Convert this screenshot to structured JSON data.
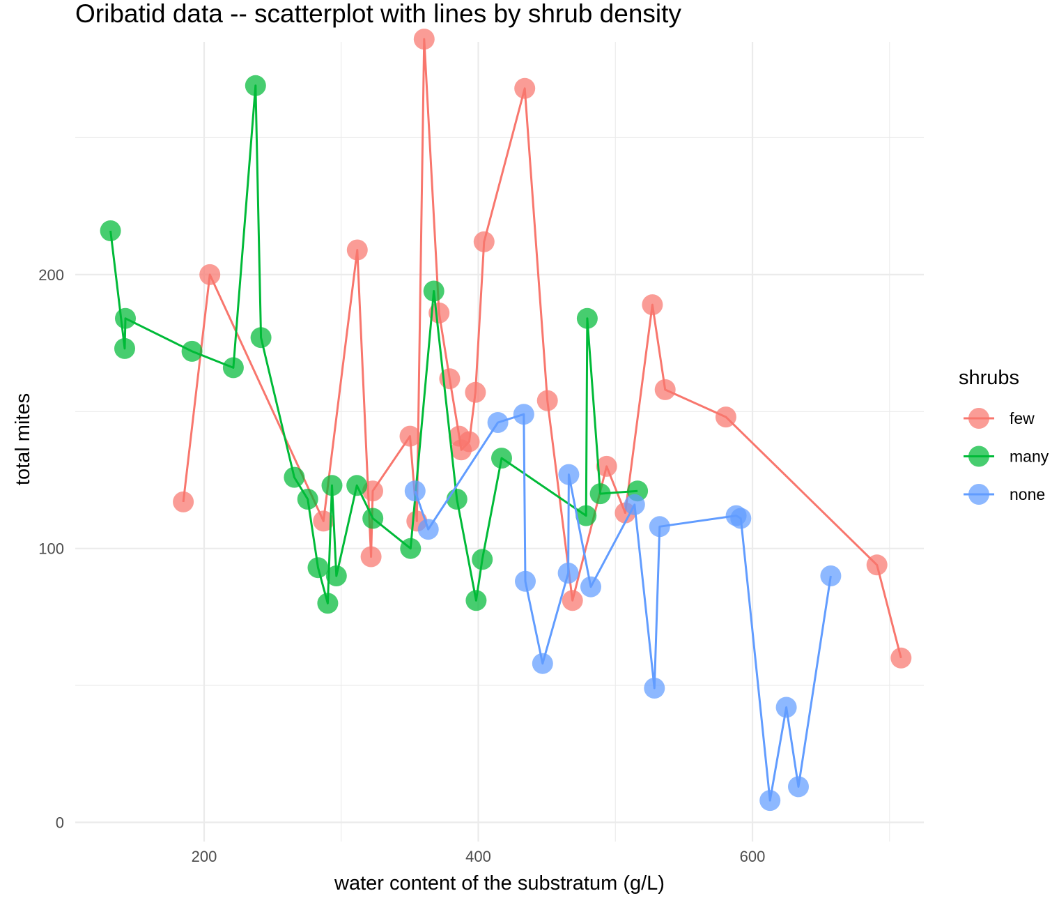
{
  "chart_data": {
    "type": "scatter",
    "title": "Oribatid data -- scatterplot with lines by shrub density",
    "xlabel": "water content of the substratum (g/L)",
    "ylabel": "total mites",
    "xlim": [
      106,
      725
    ],
    "ylim": [
      -7,
      285
    ],
    "x_ticks": [
      200,
      400,
      600
    ],
    "y_ticks": [
      0,
      100,
      200
    ],
    "x_minor_ticks": [
      300,
      500,
      700
    ],
    "y_minor_ticks": [
      50,
      150,
      250
    ],
    "grid": true,
    "legend": {
      "title": "shrubs",
      "position": "right"
    },
    "series": [
      {
        "name": "few",
        "color": "#F8766D",
        "points": [
          [
            184.8,
            117
          ],
          [
            204.2,
            200
          ],
          [
            287.1,
            110
          ],
          [
            311.7,
            209
          ],
          [
            321.8,
            97
          ],
          [
            323.0,
            121
          ],
          [
            350.2,
            141
          ],
          [
            355.2,
            110
          ],
          [
            360.5,
            286
          ],
          [
            371.4,
            186
          ],
          [
            379.1,
            162
          ],
          [
            386.1,
            141
          ],
          [
            387.6,
            136
          ],
          [
            393.4,
            139
          ],
          [
            397.9,
            157
          ],
          [
            404.2,
            212
          ],
          [
            433.9,
            268
          ],
          [
            450.4,
            154
          ],
          [
            468.7,
            81
          ],
          [
            493.6,
            130
          ],
          [
            507.2,
            113
          ],
          [
            527.0,
            189
          ],
          [
            536.3,
            158
          ],
          [
            580.6,
            148
          ],
          [
            690.8,
            94
          ],
          [
            708.4,
            60
          ]
        ]
      },
      {
        "name": "many",
        "color": "#00BA38",
        "points": [
          [
            131.7,
            216
          ],
          [
            142.1,
            173
          ],
          [
            142.6,
            184
          ],
          [
            191.2,
            172
          ],
          [
            221.3,
            166
          ],
          [
            237.5,
            269
          ],
          [
            241.5,
            177
          ],
          [
            265.8,
            126
          ],
          [
            275.6,
            118
          ],
          [
            283.1,
            93
          ],
          [
            290.2,
            80
          ],
          [
            293.3,
            123
          ],
          [
            296.5,
            90
          ],
          [
            311.4,
            123
          ],
          [
            323.1,
            111
          ],
          [
            350.6,
            100
          ],
          [
            367.6,
            194
          ],
          [
            384.4,
            118
          ],
          [
            398.4,
            81
          ],
          [
            402.9,
            96
          ],
          [
            417.0,
            133
          ],
          [
            478.6,
            112
          ],
          [
            479.5,
            184
          ],
          [
            489.0,
            120
          ],
          [
            516.2,
            121
          ]
        ]
      },
      {
        "name": "none",
        "color": "#619CFF",
        "points": [
          [
            353.9,
            121
          ],
          [
            363.5,
            107
          ],
          [
            414.3,
            146
          ],
          [
            433.2,
            149
          ],
          [
            434.3,
            88
          ],
          [
            446.9,
            58
          ],
          [
            465.6,
            91
          ],
          [
            466.0,
            127
          ],
          [
            482.1,
            86
          ],
          [
            514.0,
            116
          ],
          [
            528.5,
            49
          ],
          [
            532.3,
            108
          ],
          [
            588.1,
            112
          ],
          [
            591.5,
            111
          ],
          [
            612.8,
            8
          ],
          [
            624.7,
            42
          ],
          [
            633.5,
            13
          ],
          [
            657.1,
            90
          ]
        ]
      }
    ]
  }
}
